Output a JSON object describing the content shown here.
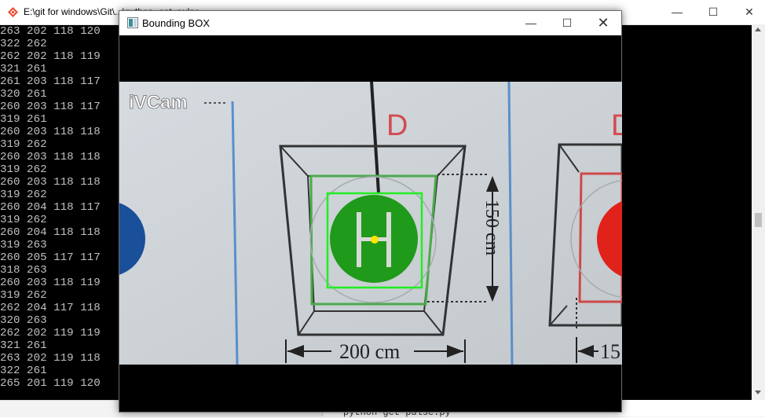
{
  "terminal": {
    "title": "E:\\git for windows\\Git\\...\\python_get_pulse",
    "minimize_glyph": "—",
    "maximize_glyph": "☐",
    "close_glyph": "✕",
    "output_lines": [
      "263 202 118 120",
      "322 262",
      "262 202 118 119",
      "321 261",
      "261 203 118 117",
      "320 261",
      "260 203 118 117",
      "319 261",
      "260 203 118 118",
      "319 262",
      "260 203 118 118",
      "319 262",
      "260 203 118 118",
      "319 262",
      "260 204 118 117",
      "319 262",
      "260 204 118 118",
      "319 263",
      "260 205 117 117",
      "318 263",
      "260 203 118 119",
      "319 262",
      "262 204 117 118",
      "320 263",
      "262 202 119 119",
      "321 261",
      "263 202 119 118",
      "322 261",
      "265 201 119 120"
    ]
  },
  "editor": {
    "visible_line": "python get pulse.py"
  },
  "window": {
    "title": "Bounding BOX",
    "minimize_glyph": "—",
    "maximize_glyph": "☐",
    "close_glyph": "✕",
    "icon": "app-window-icon"
  },
  "camera": {
    "watermark": "iVCam",
    "letter_left": "D",
    "letter_right": "D",
    "helipad_letter": "H",
    "vertical_dimension": "150 cm",
    "horizontal_dimension": "200 cm",
    "horizontal_dimension_right": "15",
    "colors": {
      "bounding_box": "#22ee22",
      "center_point": "#ffe600",
      "helipad_green": "#1f9a1a",
      "red_pad": "#e0221a",
      "blue_pad": "#1a4f9a"
    }
  }
}
